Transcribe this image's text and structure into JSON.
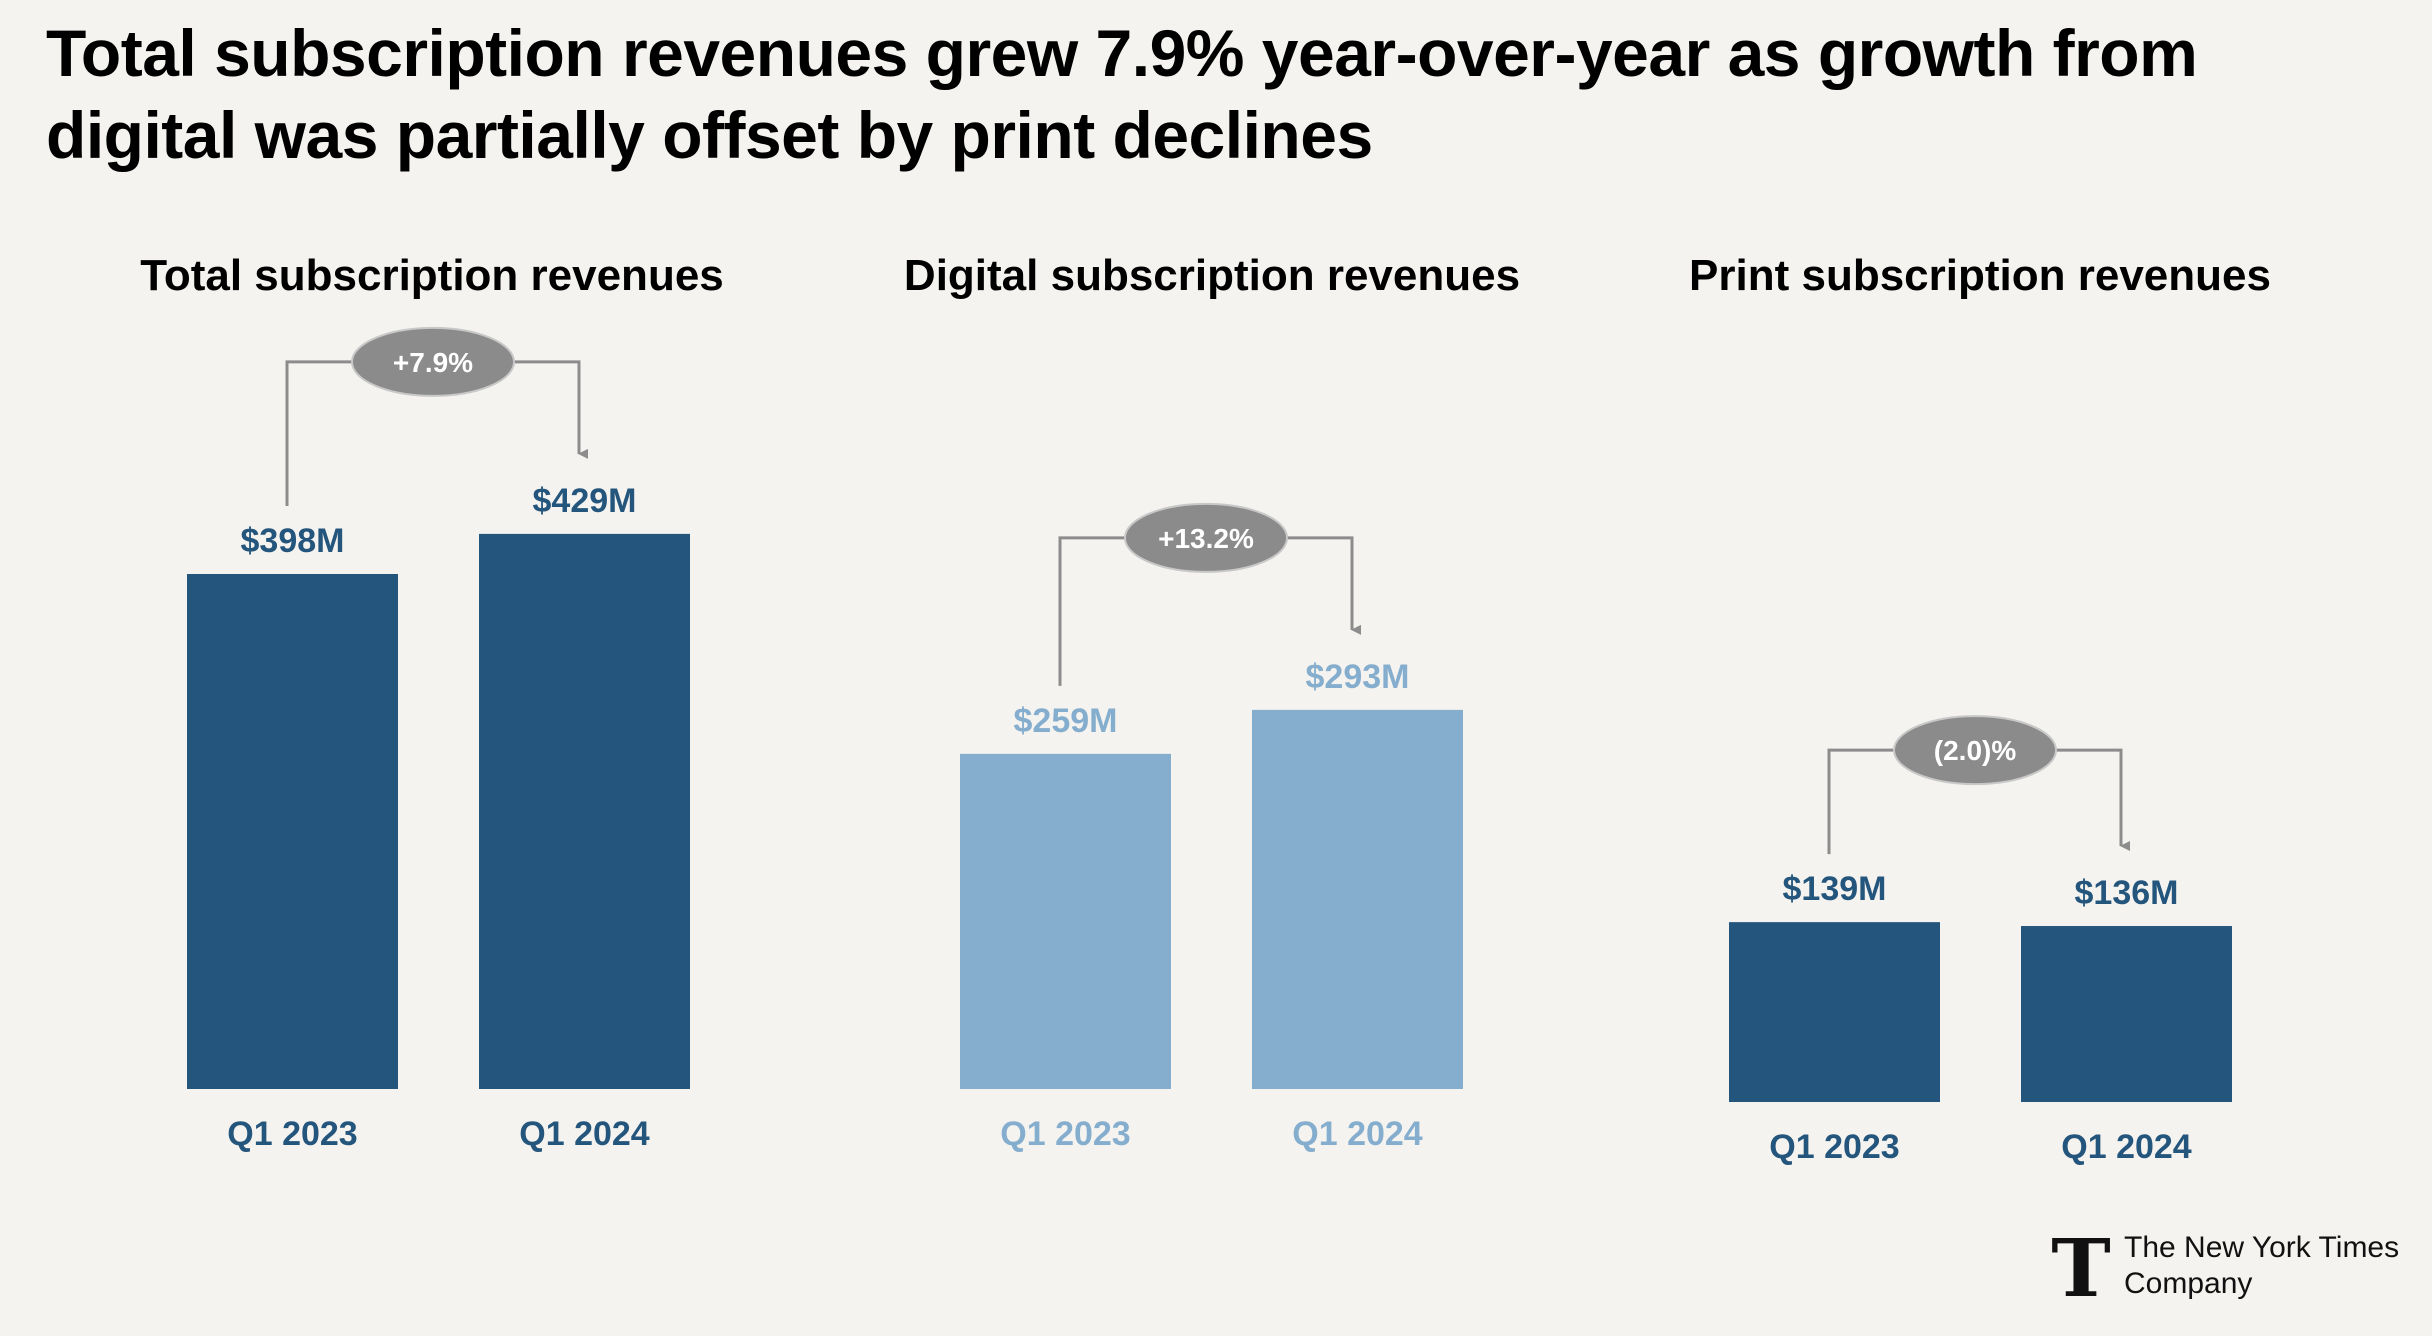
{
  "headline": "Total subscription revenues grew 7.9% year-over-year as growth from digital was partially offset by print declines",
  "company": "The New York Times Company",
  "colors": {
    "dark": "#24557c",
    "light": "#85aece",
    "connector": "#8c8c8c",
    "badge": "#8b8b8b",
    "badge_text": "#ffffff",
    "background": "#f5f3ef"
  },
  "chart_data": [
    {
      "type": "bar",
      "title": "Total subscription revenues",
      "categories": [
        "Q1 2023",
        "Q1 2024"
      ],
      "values": [
        398,
        429
      ],
      "value_labels": [
        "$398M",
        "$429M"
      ],
      "change_label": "+7.9%",
      "unit": "$M",
      "color": "#24557c"
    },
    {
      "type": "bar",
      "title": "Digital subscription revenues",
      "categories": [
        "Q1 2023",
        "Q1 2024"
      ],
      "values": [
        259,
        293
      ],
      "value_labels": [
        "$259M",
        "$293M"
      ],
      "change_label": "+13.2%",
      "unit": "$M",
      "color": "#85aece"
    },
    {
      "type": "bar",
      "title": "Print subscription revenues",
      "categories": [
        "Q1 2023",
        "Q1 2024"
      ],
      "values": [
        139,
        136
      ],
      "value_labels": [
        "$139M",
        "$136M"
      ],
      "change_label": "(2.0)%",
      "unit": "$M",
      "color": "#24557c"
    }
  ]
}
